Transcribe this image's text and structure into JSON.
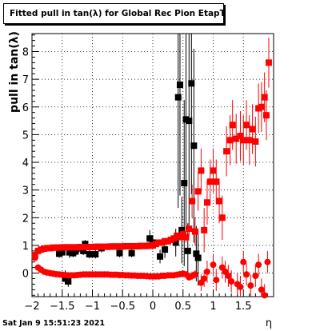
{
  "chart_data": {
    "type": "scatter",
    "title": "Fitted pull in tan(λ) for Global Rec Pion EtapT",
    "xlabel": "η",
    "ylabel": "pull in tan(λ)",
    "xlim": [
      -2,
      2
    ],
    "ylim": [
      -0.85,
      8.65
    ],
    "xticks": [
      -2,
      -1.5,
      -1,
      -0.5,
      0,
      0.5,
      1,
      1.5
    ],
    "xtick_labels": [
      "−2",
      "−1.5",
      "−1",
      "−0.5",
      "0",
      "0.5",
      "1",
      "1.5"
    ],
    "yticks": [
      0,
      1,
      2,
      3,
      4,
      5,
      6,
      7,
      8
    ],
    "ytick_labels": [
      "0",
      "1",
      "2",
      "3",
      "4",
      "5",
      "6",
      "7",
      "8"
    ],
    "grid": true,
    "series": [
      {
        "color": "#000000",
        "marker": "square",
        "points": [
          {
            "x": -1.45,
            "y": -0.1,
            "err": 0.2
          },
          {
            "x": -1.4,
            "y": -0.3,
            "err": 0.2
          },
          {
            "x": -1.38,
            "y": 0.75,
            "err": 0.2
          },
          {
            "x": -1.32,
            "y": 0.72,
            "err": 0.15
          },
          {
            "x": -1.28,
            "y": 0.78,
            "err": 0.15
          },
          {
            "x": -1.22,
            "y": 0.9,
            "err": 0.15
          },
          {
            "x": -1.15,
            "y": 0.8,
            "err": 0.15
          },
          {
            "x": -1.12,
            "y": 1.05,
            "err": 0.15
          },
          {
            "x": -1.05,
            "y": 0.68,
            "err": 0.15
          },
          {
            "x": -0.95,
            "y": 0.68,
            "err": 0.15
          },
          {
            "x": -0.85,
            "y": 0.9,
            "err": 0.15
          },
          {
            "x": -0.55,
            "y": 0.72,
            "err": 0.15
          },
          {
            "x": -0.35,
            "y": 0.72,
            "err": 0.15
          },
          {
            "x": -0.05,
            "y": 1.25,
            "err": 0.3
          },
          {
            "x": 0.0,
            "y": 1.1,
            "err": 0.25
          },
          {
            "x": 0.12,
            "y": 0.6,
            "err": 0.25
          },
          {
            "x": 0.2,
            "y": 0.85,
            "err": 0.3
          },
          {
            "x": 0.38,
            "y": 1.1,
            "err": 0.5
          },
          {
            "x": 0.42,
            "y": 6.35,
            "err": 4.0
          },
          {
            "x": 0.45,
            "y": 6.8,
            "err": 4.0
          },
          {
            "x": 0.48,
            "y": 1.55,
            "err": 1.2
          },
          {
            "x": 0.52,
            "y": 3.25,
            "err": 3.0
          },
          {
            "x": 0.55,
            "y": 5.55,
            "err": 4.0
          },
          {
            "x": 0.58,
            "y": 0.8,
            "err": 1.0
          },
          {
            "x": 0.6,
            "y": 5.5,
            "err": 4.0
          },
          {
            "x": 0.64,
            "y": 6.85,
            "err": 4.0
          },
          {
            "x": 0.68,
            "y": 4.6,
            "err": 3.5
          },
          {
            "x": 0.72,
            "y": 0.7,
            "err": 1.0
          },
          {
            "x": 0.75,
            "y": 0.55,
            "err": 1.0
          },
          {
            "x": -1.45,
            "y": -0.2,
            "err": 0.2
          },
          {
            "x": -1.55,
            "y": 0.7,
            "err": 0.15
          },
          {
            "x": -1.5,
            "y": 0.75,
            "err": 0.15
          }
        ]
      },
      {
        "color": "#ff0000",
        "marker": "circle",
        "points": [
          {
            "x": -1.95,
            "y": 0.55,
            "err": 0.1
          },
          {
            "x": -1.9,
            "y": 0.2,
            "err": 0.08
          },
          {
            "x": -1.85,
            "y": 0.12,
            "err": 0.08
          },
          {
            "x": -1.8,
            "y": 0.05,
            "err": 0.06
          },
          {
            "x": -1.75,
            "y": 0.02,
            "err": 0.06
          },
          {
            "x": -1.7,
            "y": 0.0,
            "err": 0.06
          },
          {
            "x": -1.65,
            "y": -0.02,
            "err": 0.06
          },
          {
            "x": -1.6,
            "y": -0.04,
            "err": 0.06
          },
          {
            "x": -1.55,
            "y": -0.05,
            "err": 0.06
          },
          {
            "x": -1.5,
            "y": -0.06,
            "err": 0.06
          },
          {
            "x": -1.45,
            "y": -0.07,
            "err": 0.06
          },
          {
            "x": -1.4,
            "y": -0.08,
            "err": 0.06
          },
          {
            "x": -1.35,
            "y": -0.08,
            "err": 0.06
          },
          {
            "x": -1.3,
            "y": -0.08,
            "err": 0.06
          },
          {
            "x": -1.25,
            "y": -0.07,
            "err": 0.06
          },
          {
            "x": -1.2,
            "y": -0.06,
            "err": 0.06
          },
          {
            "x": -1.15,
            "y": -0.05,
            "err": 0.06
          },
          {
            "x": -1.1,
            "y": -0.05,
            "err": 0.06
          },
          {
            "x": -1.05,
            "y": -0.05,
            "err": 0.06
          },
          {
            "x": -1.0,
            "y": -0.05,
            "err": 0.06
          },
          {
            "x": -0.95,
            "y": -0.05,
            "err": 0.06
          },
          {
            "x": -0.9,
            "y": -0.05,
            "err": 0.06
          },
          {
            "x": -0.85,
            "y": -0.05,
            "err": 0.06
          },
          {
            "x": -0.8,
            "y": -0.05,
            "err": 0.06
          },
          {
            "x": -0.75,
            "y": -0.05,
            "err": 0.06
          },
          {
            "x": -0.7,
            "y": -0.06,
            "err": 0.06
          },
          {
            "x": -0.65,
            "y": -0.06,
            "err": 0.06
          },
          {
            "x": -0.6,
            "y": -0.06,
            "err": 0.06
          },
          {
            "x": -0.55,
            "y": -0.07,
            "err": 0.06
          },
          {
            "x": -0.5,
            "y": -0.07,
            "err": 0.06
          },
          {
            "x": -0.45,
            "y": -0.08,
            "err": 0.06
          },
          {
            "x": -0.4,
            "y": -0.08,
            "err": 0.06
          },
          {
            "x": -0.35,
            "y": -0.09,
            "err": 0.06
          },
          {
            "x": -0.3,
            "y": -0.09,
            "err": 0.06
          },
          {
            "x": -0.25,
            "y": -0.1,
            "err": 0.06
          },
          {
            "x": -0.2,
            "y": -0.1,
            "err": 0.06
          },
          {
            "x": -0.15,
            "y": -0.1,
            "err": 0.06
          },
          {
            "x": -0.1,
            "y": -0.11,
            "err": 0.06
          },
          {
            "x": -0.05,
            "y": -0.12,
            "err": 0.06
          },
          {
            "x": 0.0,
            "y": -0.12,
            "err": 0.06
          },
          {
            "x": 0.05,
            "y": -0.12,
            "err": 0.07
          },
          {
            "x": 0.1,
            "y": -0.12,
            "err": 0.07
          },
          {
            "x": 0.15,
            "y": -0.1,
            "err": 0.07
          },
          {
            "x": 0.2,
            "y": -0.1,
            "err": 0.07
          },
          {
            "x": 0.25,
            "y": -0.08,
            "err": 0.08
          },
          {
            "x": 0.3,
            "y": -0.08,
            "err": 0.08
          },
          {
            "x": 0.35,
            "y": -0.08,
            "err": 0.08
          },
          {
            "x": 0.4,
            "y": -0.06,
            "err": 0.08
          },
          {
            "x": 0.45,
            "y": -0.04,
            "err": 0.1
          },
          {
            "x": 0.5,
            "y": -0.02,
            "err": 0.1
          },
          {
            "x": 0.55,
            "y": -0.05,
            "err": 0.12
          },
          {
            "x": 0.6,
            "y": -0.15,
            "err": 0.12
          },
          {
            "x": 0.65,
            "y": -0.1,
            "err": 0.15
          },
          {
            "x": 0.7,
            "y": -0.05,
            "err": 0.15
          },
          {
            "x": 0.8,
            "y": -0.35,
            "err": 0.3
          },
          {
            "x": 0.85,
            "y": -0.2,
            "err": 0.3
          },
          {
            "x": 0.9,
            "y": 0.05,
            "err": 0.4
          },
          {
            "x": 1.0,
            "y": 0.3,
            "err": 0.4
          },
          {
            "x": 1.05,
            "y": -0.25,
            "err": 0.4
          },
          {
            "x": 1.15,
            "y": 0.2,
            "err": 0.4
          },
          {
            "x": 1.2,
            "y": 0.05,
            "err": 0.4
          },
          {
            "x": 1.25,
            "y": -0.1,
            "err": 0.4
          },
          {
            "x": 1.3,
            "y": -0.3,
            "err": 0.4
          },
          {
            "x": 1.4,
            "y": -0.4,
            "err": 0.4
          },
          {
            "x": 1.45,
            "y": -0.5,
            "err": 0.4
          },
          {
            "x": 1.5,
            "y": 0.4,
            "err": 0.4
          },
          {
            "x": 1.55,
            "y": -0.05,
            "err": 0.4
          },
          {
            "x": 1.62,
            "y": -0.45,
            "err": 0.4
          },
          {
            "x": 1.7,
            "y": -0.1,
            "err": 0.4
          },
          {
            "x": 1.75,
            "y": 0.3,
            "err": 0.4
          },
          {
            "x": 1.8,
            "y": -0.6,
            "err": 0.4
          },
          {
            "x": 1.85,
            "y": -0.8,
            "err": 0.4
          },
          {
            "x": 1.9,
            "y": 0.4,
            "err": 0.4
          }
        ]
      },
      {
        "color": "#ff0000",
        "marker": "square",
        "points": [
          {
            "x": -1.95,
            "y": 0.65,
            "err": 0.1
          },
          {
            "x": -1.9,
            "y": 0.8,
            "err": 0.08
          },
          {
            "x": -1.85,
            "y": 0.85,
            "err": 0.06
          },
          {
            "x": -1.8,
            "y": 0.88,
            "err": 0.06
          },
          {
            "x": -1.75,
            "y": 0.9,
            "err": 0.06
          },
          {
            "x": -1.7,
            "y": 0.9,
            "err": 0.06
          },
          {
            "x": -1.65,
            "y": 0.92,
            "err": 0.05
          },
          {
            "x": -1.6,
            "y": 0.92,
            "err": 0.05
          },
          {
            "x": -1.55,
            "y": 0.92,
            "err": 0.05
          },
          {
            "x": -1.5,
            "y": 0.93,
            "err": 0.05
          },
          {
            "x": -1.45,
            "y": 0.93,
            "err": 0.05
          },
          {
            "x": -1.4,
            "y": 0.93,
            "err": 0.05
          },
          {
            "x": -1.35,
            "y": 0.93,
            "err": 0.05
          },
          {
            "x": -1.3,
            "y": 0.93,
            "err": 0.05
          },
          {
            "x": -1.25,
            "y": 0.93,
            "err": 0.05
          },
          {
            "x": -1.2,
            "y": 0.94,
            "err": 0.05
          },
          {
            "x": -1.15,
            "y": 0.94,
            "err": 0.05
          },
          {
            "x": -1.1,
            "y": 0.94,
            "err": 0.05
          },
          {
            "x": -1.05,
            "y": 0.94,
            "err": 0.05
          },
          {
            "x": -1.0,
            "y": 0.94,
            "err": 0.05
          },
          {
            "x": -0.95,
            "y": 0.95,
            "err": 0.05
          },
          {
            "x": -0.9,
            "y": 0.95,
            "err": 0.05
          },
          {
            "x": -0.85,
            "y": 0.95,
            "err": 0.05
          },
          {
            "x": -0.8,
            "y": 0.95,
            "err": 0.05
          },
          {
            "x": -0.75,
            "y": 0.95,
            "err": 0.05
          },
          {
            "x": -0.7,
            "y": 0.96,
            "err": 0.05
          },
          {
            "x": -0.65,
            "y": 0.96,
            "err": 0.05
          },
          {
            "x": -0.6,
            "y": 0.96,
            "err": 0.05
          },
          {
            "x": -0.55,
            "y": 0.96,
            "err": 0.05
          },
          {
            "x": -0.5,
            "y": 0.96,
            "err": 0.05
          },
          {
            "x": -0.45,
            "y": 0.97,
            "err": 0.05
          },
          {
            "x": -0.4,
            "y": 0.97,
            "err": 0.05
          },
          {
            "x": -0.35,
            "y": 0.97,
            "err": 0.05
          },
          {
            "x": -0.3,
            "y": 0.97,
            "err": 0.05
          },
          {
            "x": -0.25,
            "y": 0.97,
            "err": 0.05
          },
          {
            "x": -0.2,
            "y": 0.98,
            "err": 0.05
          },
          {
            "x": -0.15,
            "y": 0.98,
            "err": 0.05
          },
          {
            "x": -0.1,
            "y": 0.98,
            "err": 0.05
          },
          {
            "x": -0.05,
            "y": 0.99,
            "err": 0.05
          },
          {
            "x": 0.0,
            "y": 1.0,
            "err": 0.05
          },
          {
            "x": 0.05,
            "y": 1.05,
            "err": 0.06
          },
          {
            "x": 0.1,
            "y": 1.1,
            "err": 0.06
          },
          {
            "x": 0.15,
            "y": 1.1,
            "err": 0.06
          },
          {
            "x": 0.2,
            "y": 1.15,
            "err": 0.07
          },
          {
            "x": 0.25,
            "y": 1.15,
            "err": 0.07
          },
          {
            "x": 0.3,
            "y": 1.2,
            "err": 0.08
          },
          {
            "x": 0.35,
            "y": 1.25,
            "err": 0.08
          },
          {
            "x": 0.4,
            "y": 1.35,
            "err": 0.1
          },
          {
            "x": 0.45,
            "y": 1.3,
            "err": 0.1
          },
          {
            "x": 0.5,
            "y": 1.4,
            "err": 0.15
          },
          {
            "x": 0.55,
            "y": 1.3,
            "err": 0.2
          },
          {
            "x": 0.6,
            "y": 1.6,
            "err": 0.25
          },
          {
            "x": 0.65,
            "y": 2.6,
            "err": 0.6
          },
          {
            "x": 0.7,
            "y": 1.5,
            "err": 0.5
          },
          {
            "x": 0.75,
            "y": 2.95,
            "err": 0.7
          },
          {
            "x": 0.8,
            "y": 3.7,
            "err": 0.8
          },
          {
            "x": 0.85,
            "y": 1.55,
            "err": 0.8
          },
          {
            "x": 0.9,
            "y": 2.55,
            "err": 0.8
          },
          {
            "x": 0.95,
            "y": 3.3,
            "err": 0.8
          },
          {
            "x": 1.0,
            "y": 3.7,
            "err": 0.8
          },
          {
            "x": 1.05,
            "y": 3.3,
            "err": 0.8
          },
          {
            "x": 1.1,
            "y": 2.6,
            "err": 0.8
          },
          {
            "x": 1.15,
            "y": 2.0,
            "err": 0.8
          },
          {
            "x": 1.22,
            "y": 4.4,
            "err": 0.9
          },
          {
            "x": 1.28,
            "y": 4.8,
            "err": 0.9
          },
          {
            "x": 1.32,
            "y": 5.35,
            "err": 0.9
          },
          {
            "x": 1.38,
            "y": 4.85,
            "err": 0.9
          },
          {
            "x": 1.45,
            "y": 4.95,
            "err": 0.9
          },
          {
            "x": 1.5,
            "y": 4.8,
            "err": 0.9
          },
          {
            "x": 1.55,
            "y": 5.35,
            "err": 0.9
          },
          {
            "x": 1.6,
            "y": 4.8,
            "err": 0.9
          },
          {
            "x": 1.65,
            "y": 5.2,
            "err": 0.9
          },
          {
            "x": 1.7,
            "y": 4.75,
            "err": 0.9
          },
          {
            "x": 1.75,
            "y": 5.95,
            "err": 0.9
          },
          {
            "x": 1.8,
            "y": 6.0,
            "err": 0.9
          },
          {
            "x": 1.85,
            "y": 6.35,
            "err": 0.9
          },
          {
            "x": 1.88,
            "y": 5.7,
            "err": 0.9
          },
          {
            "x": 1.92,
            "y": 7.6,
            "err": 0.9
          }
        ]
      }
    ]
  },
  "title_text": "Fitted pull in tan(λ) for Global Rec Pion EtapT",
  "footer_date": "Sat Jan  9 15:51:23 2021"
}
